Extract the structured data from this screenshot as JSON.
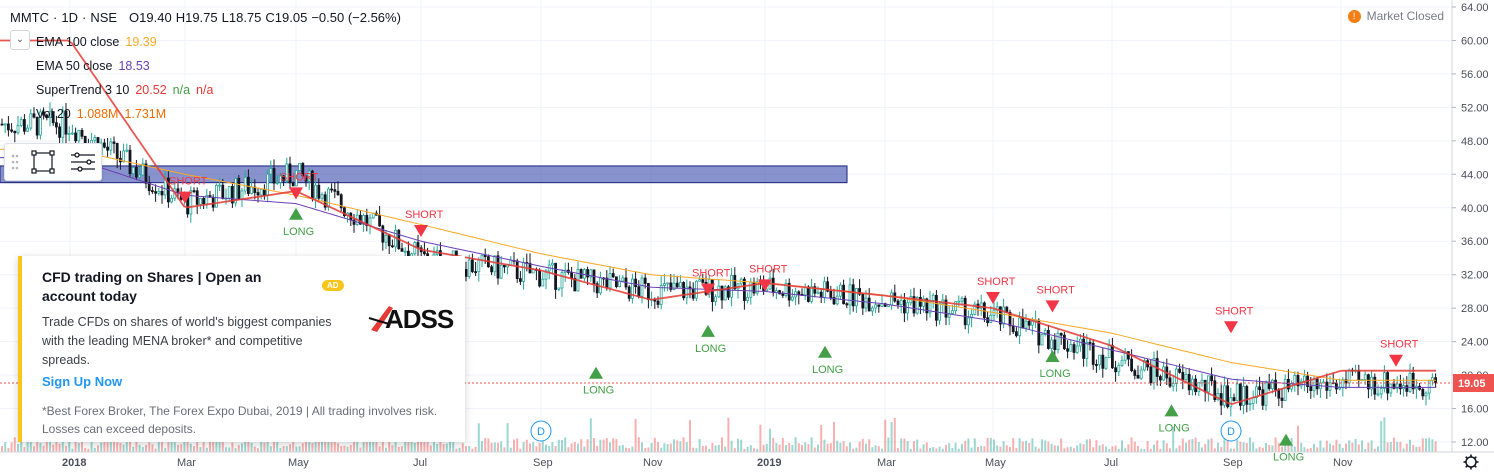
{
  "header": {
    "symbol": "MMTC",
    "interval": "1D",
    "exchange": "NSE",
    "open": "O19.40",
    "high": "H19.75",
    "low": "L18.75",
    "close": "C19.05",
    "change": "−0.50 (−2.56%)",
    "market_status": "Market Closed",
    "collapse_icon": "chevron-down-icon"
  },
  "indicators": [
    {
      "name": "EMA 100 close",
      "v1": "19.39",
      "v2": "",
      "v3": "",
      "color": "#f9a825"
    },
    {
      "name": "EMA 50 close",
      "v1": "18.53",
      "v2": "",
      "v3": "",
      "color": "#6a3fb5"
    },
    {
      "name": "SuperTrend 3 10",
      "v1": "20.52",
      "v2": "n/a",
      "v3": "n/a",
      "color": "#e53935"
    },
    {
      "name": "Vol 20",
      "v1": "1.088M",
      "v2": "1.731M",
      "v3": "",
      "color": "#ef6c00"
    }
  ],
  "ad": {
    "title": "CFD trading on Shares | Open an account today",
    "badge": "AD",
    "logo": "ADSS",
    "body": "Trade CFDs on shares of world's biggest companies with the leading MENA broker* and competitive spreads.",
    "cta": "Sign Up Now",
    "disclaimer": "*Best Forex Broker, The Forex Expo Dubai, 2019 | All trading involves risk. Losses can exceed deposits."
  },
  "chart_data": {
    "type": "line",
    "title": "",
    "xlabel": "",
    "ylabel": "",
    "ylim": [
      12,
      64
    ],
    "grid": true,
    "price_axis": [
      "64.00",
      "60.00",
      "56.00",
      "52.00",
      "48.00",
      "44.00",
      "40.00",
      "36.00",
      "32.00",
      "28.00",
      "24.00",
      "20.00",
      "16.00",
      "12.00"
    ],
    "time_axis": [
      "2018",
      "Mar",
      "May",
      "Jul",
      "Sep",
      "Nov",
      "2019",
      "Mar",
      "May",
      "Jul",
      "Sep",
      "Nov"
    ],
    "last_price_label": "19.05",
    "last_price": 19.05,
    "zone_box": {
      "y_low": 43.0,
      "y_high": 45.0
    },
    "colors": {
      "up": "#26a69a",
      "down": "#ef5350",
      "ema100": "#f9a825",
      "ema50": "#6a3fb5",
      "supertrend_down": "#e53935",
      "supertrend_up": "#43a047",
      "zone": "#3949ab"
    },
    "series": [
      {
        "name": "Price",
        "x": [
          "2018",
          "Mar",
          "May",
          "Jul",
          "Sep",
          "Nov",
          "2019",
          "Mar",
          "May",
          "Jul",
          "Sep",
          "Nov"
        ],
        "values": [
          50.0,
          40.5,
          44.0,
          34.0,
          32.0,
          30.0,
          30.5,
          29.0,
          27.0,
          22.0,
          17.5,
          19.05
        ]
      },
      {
        "name": "EMA 100 close",
        "values": [
          47.0,
          44.0,
          41.5,
          38.0,
          34.5,
          32.0,
          31.0,
          29.5,
          27.5,
          25.0,
          21.5,
          19.39
        ]
      },
      {
        "name": "EMA 50 close",
        "values": [
          46.0,
          41.5,
          40.5,
          36.0,
          33.0,
          30.5,
          30.0,
          28.5,
          26.5,
          23.0,
          19.5,
          18.53
        ]
      },
      {
        "name": "SuperTrend 3 10",
        "values": [
          60.0,
          40.0,
          42.0,
          35.0,
          32.5,
          29.0,
          31.0,
          29.5,
          28.0,
          23.5,
          16.5,
          20.52
        ]
      }
    ],
    "signals": [
      {
        "label": "SHORT",
        "date": "Mar 2018",
        "price": 40.5
      },
      {
        "label": "LONG",
        "date": "May 2018",
        "price": 40.0
      },
      {
        "label": "SHORT",
        "date": "May 2018",
        "price": 41.0
      },
      {
        "label": "SHORT",
        "date": "Jul 2018",
        "price": 36.5
      },
      {
        "label": "LONG",
        "date": "Oct 2018",
        "price": 21.0
      },
      {
        "label": "SHORT",
        "date": "Dec 2018",
        "price": 29.5
      },
      {
        "label": "LONG",
        "date": "Dec 2018",
        "price": 26.0
      },
      {
        "label": "SHORT",
        "date": "Jan 2019",
        "price": 30.0
      },
      {
        "label": "LONG",
        "date": "Feb 2019",
        "price": 23.5
      },
      {
        "label": "SHORT",
        "date": "May 2019",
        "price": 28.5
      },
      {
        "label": "LONG",
        "date": "Jun 2019",
        "price": 23.0
      },
      {
        "label": "SHORT",
        "date": "Jun 2019",
        "price": 27.5
      },
      {
        "label": "LONG",
        "date": "Aug 2019",
        "price": 16.5
      },
      {
        "label": "SHORT",
        "date": "Sep 2019",
        "price": 25.0
      },
      {
        "label": "LONG",
        "date": "Oct 2019",
        "price": 13.0
      },
      {
        "label": "SHORT",
        "date": "Dec 2019",
        "price": 21.0
      }
    ],
    "events": [
      {
        "label": "D",
        "date": "Sep 2018"
      },
      {
        "label": "D",
        "date": "Sep 2019"
      }
    ]
  }
}
